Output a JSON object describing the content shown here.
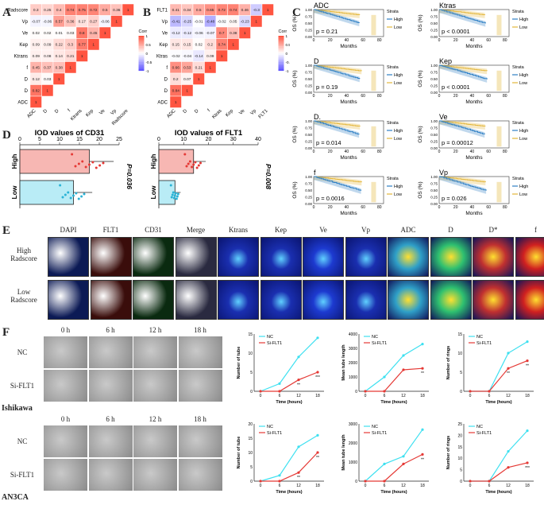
{
  "panels": {
    "a": "A",
    "b": "B",
    "c": "C",
    "d": "D",
    "e": "E",
    "f": "F"
  },
  "heatmapA": {
    "rows": [
      "Radscore",
      "Vp",
      "Ve",
      "Kep",
      "Ktrans",
      "f",
      "D",
      "D",
      "ADC"
    ],
    "cols": [
      "ADC",
      "D",
      "D",
      "f",
      "Ktrans",
      "Kep",
      "Ve",
      "Vp",
      "Radscore"
    ],
    "values": [
      [
        0.3,
        0.25,
        0.4,
        0.74,
        0.75,
        0.72,
        0.5,
        0.36,
        1
      ],
      [
        -0.07,
        -0.06,
        0.57,
        0.36,
        0.17,
        0.27,
        -0.06,
        1,
        null
      ],
      [
        0.02,
        0.02,
        0.01,
        0.03,
        0.8,
        0.45,
        1,
        null,
        null
      ],
      [
        0.09,
        0.09,
        0.22,
        0.3,
        0.77,
        1,
        null,
        null,
        null
      ],
      [
        0.09,
        0.08,
        0.14,
        0.21,
        1,
        null,
        null,
        null,
        null
      ],
      [
        0.45,
        0.37,
        0.38,
        1,
        null,
        null,
        null,
        null,
        null
      ],
      [
        0.12,
        0.03,
        1,
        null,
        null,
        null,
        null,
        null,
        null
      ],
      [
        0.82,
        1,
        null,
        null,
        null,
        null,
        null,
        null,
        null
      ],
      [
        1,
        null,
        null,
        null,
        null,
        null,
        null,
        null,
        null
      ]
    ],
    "legend_title": "Corr",
    "legend_ticks": [
      "1",
      "0.5",
      "0",
      "-0.5",
      "-1"
    ]
  },
  "heatmapB": {
    "rows": [
      "FLT1",
      "Vp",
      "Ve",
      "Kep",
      "Ktras",
      "f",
      "D",
      "D",
      "ADC"
    ],
    "cols": [
      "ADC",
      "D",
      "D",
      "f",
      "Ktras",
      "Kep",
      "Ve",
      "Vp",
      "FLT1"
    ],
    "values": [
      [
        0.41,
        0.34,
        0.5,
        0.65,
        0.72,
        0.74,
        0.46,
        -0.3,
        1
      ],
      [
        -0.41,
        -0.25,
        -0.01,
        -0.48,
        -0.02,
        0.05,
        -0.23,
        1,
        null
      ],
      [
        -0.12,
        -0.12,
        -0.06,
        -0.07,
        0.7,
        0.38,
        1,
        null,
        null
      ],
      [
        0.15,
        0.15,
        0.02,
        0.2,
        0.74,
        1,
        null,
        null,
        null
      ],
      [
        -0.02,
        -0.04,
        -0.14,
        0.09,
        1,
        null,
        null,
        null,
        null
      ],
      [
        0.66,
        0.53,
        0.21,
        1,
        null,
        null,
        null,
        null,
        null
      ],
      [
        0.2,
        0.07,
        1,
        null,
        null,
        null,
        null,
        null,
        null
      ],
      [
        0.84,
        1,
        null,
        null,
        null,
        null,
        null,
        null,
        null
      ],
      [
        1,
        null,
        null,
        null,
        null,
        null,
        null,
        null,
        null
      ]
    ],
    "legend_title": "Corr",
    "legend_ticks": [
      "1",
      "0.5",
      "0",
      "-0.5",
      "-1"
    ]
  },
  "km": {
    "strata_title": "Strata",
    "high_label": "High",
    "low_label": "Low",
    "xlabel": "Months",
    "ylabel": "OS (%)",
    "xticks": [
      "0",
      "20",
      "40",
      "60",
      "80"
    ],
    "yticks": [
      "1.00",
      "0.75",
      "0.50",
      "0.25",
      "0.00"
    ],
    "plots": [
      {
        "title": "ADC",
        "p": "p = 0.21"
      },
      {
        "title": "Ktras",
        "p": "p < 0.0001"
      },
      {
        "title": "D",
        "p": "p = 0.19"
      },
      {
        "title": "Kep",
        "p": "p < 0.0001"
      },
      {
        "title": "D.",
        "p": "p = 0.014"
      },
      {
        "title": "Ve",
        "p": "p = 0.00012"
      },
      {
        "title": "f",
        "p": "p = 0.0016"
      },
      {
        "title": "Vp",
        "p": "p = 0.026"
      }
    ]
  },
  "iod": [
    {
      "title": "IOD values of CD31",
      "ticks": [
        "0",
        "5",
        "10",
        "15",
        "20",
        "25"
      ],
      "max": 25,
      "high": 17.5,
      "low": 13.5,
      "p": "P=0.036",
      "high_label": "High",
      "low_label": "Low"
    },
    {
      "title": "IOD values of FLT1",
      "ticks": [
        "0",
        "10",
        "20",
        "30",
        "40"
      ],
      "max": 40,
      "high": 14,
      "low": 6.5,
      "p": "P=0.008",
      "high_label": "High",
      "low_label": "Low"
    }
  ],
  "panelE": {
    "headers": [
      "DAPI",
      "FLT1",
      "CD31",
      "Merge",
      "Ktrans",
      "Kep",
      "Ve",
      "Vp",
      "ADC",
      "D",
      "D*",
      "f"
    ],
    "row_labels": [
      "High\nRadscore",
      "Low\nRadscore"
    ]
  },
  "panelF": {
    "time_headers": [
      "0 h",
      "6 h",
      "12 h",
      "18 h"
    ],
    "row_labels": [
      "NC",
      "Si-FLT1"
    ],
    "cell_lines": [
      "Ishikawa",
      "AN3CA"
    ],
    "legend": [
      "NC",
      "Si-FLT1"
    ],
    "xlabel": "Time (hours)",
    "xticks": [
      "0",
      "6",
      "12",
      "18"
    ],
    "charts": [
      {
        "ylabel": "Number of tube",
        "ymax": 15,
        "yticks": [
          "0",
          "5",
          "10",
          "15"
        ],
        "nc": [
          0,
          2,
          9,
          14
        ],
        "si": [
          0,
          0,
          3,
          5
        ],
        "stars": [
          "",
          "",
          "**",
          "***"
        ]
      },
      {
        "ylabel": "Mean tube length",
        "ymax": 4000,
        "yticks": [
          "0",
          "1000",
          "2000",
          "3000",
          "4000"
        ],
        "nc": [
          0,
          1000,
          2500,
          3300
        ],
        "si": [
          0,
          0,
          1500,
          1600
        ],
        "stars": [
          "",
          "",
          "",
          "**"
        ]
      },
      {
        "ylabel": "Number of rings",
        "ymax": 15,
        "yticks": [
          "0",
          "5",
          "10",
          "15"
        ],
        "nc": [
          0,
          0,
          10,
          13
        ],
        "si": [
          0,
          0,
          6,
          8
        ],
        "stars": [
          "",
          "",
          "**",
          "**"
        ]
      },
      {
        "ylabel": "Number of tube",
        "ymax": 20,
        "yticks": [
          "0",
          "5",
          "10",
          "15",
          "20"
        ],
        "nc": [
          0,
          2,
          12,
          16
        ],
        "si": [
          0,
          0,
          3,
          10
        ],
        "stars": [
          "",
          "",
          "**",
          "**"
        ]
      },
      {
        "ylabel": "Mean tube length",
        "ymax": 3000,
        "yticks": [
          "0",
          "1000",
          "2000",
          "3000"
        ],
        "nc": [
          0,
          900,
          1300,
          2700
        ],
        "si": [
          0,
          0,
          900,
          1400
        ],
        "stars": [
          "",
          "",
          "",
          "**"
        ]
      },
      {
        "ylabel": "Number of rings",
        "ymax": 25,
        "yticks": [
          "0",
          "5",
          "10",
          "15",
          "20",
          "25"
        ],
        "nc": [
          0,
          0,
          13,
          22
        ],
        "si": [
          0,
          0,
          6,
          8
        ],
        "stars": [
          "",
          "",
          "",
          "***"
        ]
      }
    ]
  },
  "colors": {
    "km_high": "#2e7fc4",
    "km_low": "#e3b63a",
    "nc": "#3ee0f0",
    "si": "#e53935",
    "iod_high": "#f7b7b3",
    "iod_low": "#b9ecf6"
  }
}
